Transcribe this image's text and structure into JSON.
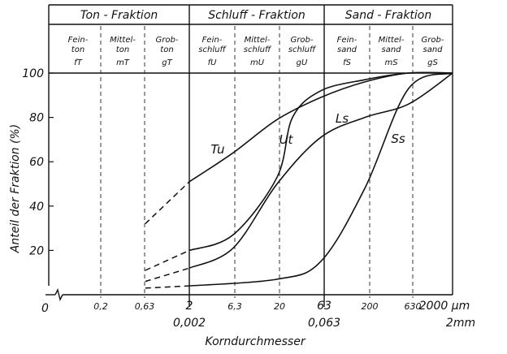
{
  "chart_data": {
    "type": "line",
    "title": "",
    "xlabel": "Korndurchmesser",
    "ylabel": "Anteil der Fraktion (%)",
    "y_ticks": [
      "0",
      "20",
      "40",
      "60",
      "80",
      "100"
    ],
    "x_ticks": [
      {
        "label": "0,2"
      },
      {
        "label": "0,63"
      },
      {
        "label": "2",
        "sub": "0,002"
      },
      {
        "label": "6,3"
      },
      {
        "label": "20"
      },
      {
        "label": "63",
        "sub": "0,063"
      },
      {
        "label": "200"
      },
      {
        "label": "630"
      },
      {
        "label": "2000 µm",
        "sub": "2mm"
      }
    ],
    "x_scale": "log",
    "x_values_um": [
      0.2,
      0.63,
      2,
      6.3,
      20,
      63,
      200,
      630,
      2000
    ],
    "ylim": [
      0,
      100
    ],
    "fractions": [
      {
        "name": "Ton - Fraktion",
        "classes": [
          [
            "Fein-",
            "ton",
            "fT"
          ],
          [
            "Mittel-",
            "ton",
            "mT"
          ],
          [
            "Grob-",
            "ton",
            "gT"
          ]
        ]
      },
      {
        "name": "Schluff - Fraktion",
        "classes": [
          [
            "Fein-",
            "schluff",
            "fU"
          ],
          [
            "Mittel-",
            "schluff",
            "mU"
          ],
          [
            "Grob-",
            "schluff",
            "gU"
          ]
        ]
      },
      {
        "name": "Sand - Fraktion",
        "classes": [
          [
            "Fein-",
            "sand",
            "fS"
          ],
          [
            "Mittel-",
            "sand",
            "mS"
          ],
          [
            "Grob-",
            "sand",
            "gS"
          ]
        ]
      }
    ],
    "series": [
      {
        "name": "Tu",
        "dashed_below_um": 2,
        "points": [
          [
            0.63,
            32
          ],
          [
            2,
            51
          ],
          [
            6.3,
            64
          ],
          [
            20,
            79
          ],
          [
            63,
            89
          ],
          [
            200,
            96
          ],
          [
            630,
            100
          ],
          [
            2000,
            100
          ]
        ]
      },
      {
        "name": "Ut",
        "dashed_below_um": 2,
        "points": [
          [
            0.63,
            11
          ],
          [
            2,
            20
          ],
          [
            6.3,
            27
          ],
          [
            20,
            53
          ],
          [
            30,
            80
          ],
          [
            63,
            92
          ],
          [
            200,
            97
          ],
          [
            630,
            100
          ],
          [
            2000,
            100
          ]
        ]
      },
      {
        "name": "Ls",
        "dashed_below_um": 2,
        "points": [
          [
            0.63,
            6
          ],
          [
            2,
            12
          ],
          [
            6.3,
            21
          ],
          [
            20,
            50
          ],
          [
            63,
            71
          ],
          [
            200,
            80
          ],
          [
            630,
            86
          ],
          [
            2000,
            100
          ]
        ]
      },
      {
        "name": "Ss",
        "dashed_below_um": 2,
        "points": [
          [
            0.63,
            3
          ],
          [
            2,
            4
          ],
          [
            20,
            7
          ],
          [
            63,
            15
          ],
          [
            200,
            48
          ],
          [
            630,
            93
          ],
          [
            2000,
            100
          ]
        ]
      }
    ]
  }
}
